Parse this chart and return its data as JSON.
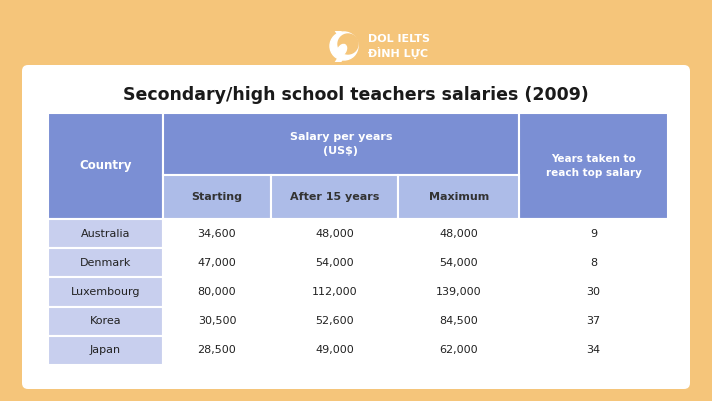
{
  "title": "Secondary/high school teachers salaries (2009)",
  "background_color": "#F5C57A",
  "card_color": "#FFFFFF",
  "header_dark_blue": "#7B8FD4",
  "header_light_blue": "#ADBCE8",
  "row_country_blue": "#C8CFEE",
  "col_header_country": "Country",
  "salary_header": "Salary per years\n(US$)",
  "years_header": "Years taken to\nreach top salary",
  "col_headers_sub": [
    "Starting",
    "After 15 years",
    "Maximum"
  ],
  "rows": [
    [
      "Australia",
      "34,600",
      "48,000",
      "48,000",
      "9"
    ],
    [
      "Denmark",
      "47,000",
      "54,000",
      "54,000",
      "8"
    ],
    [
      "Luxembourg",
      "80,000",
      "112,000",
      "139,000",
      "30"
    ],
    [
      "Korea",
      "30,500",
      "52,600",
      "84,500",
      "37"
    ],
    [
      "Japan",
      "28,500",
      "49,000",
      "62,000",
      "34"
    ]
  ],
  "logo_text1": "DOL IELTS",
  "logo_text2": "ĐÌNH LỰC",
  "fig_width": 7.12,
  "fig_height": 4.01,
  "dpi": 100
}
